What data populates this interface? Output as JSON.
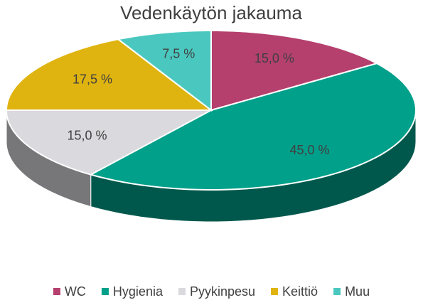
{
  "chart_data": {
    "type": "pie3d",
    "title": "Vedenkäytön jakauma",
    "categories": [
      "WC",
      "Hygienia",
      "Pyykinpesu",
      "Keittiö",
      "Muu"
    ],
    "values": [
      15,
      45,
      15,
      17.5,
      7.5
    ],
    "value_labels": [
      "15,0 %",
      "45,0 %",
      "15,0 %",
      "17,5 %",
      "7,5 %"
    ],
    "colors": [
      "#b5406e",
      "#00a08a",
      "#d9d9de",
      "#e0b410",
      "#4ac8c0"
    ],
    "legend": "bottom"
  }
}
